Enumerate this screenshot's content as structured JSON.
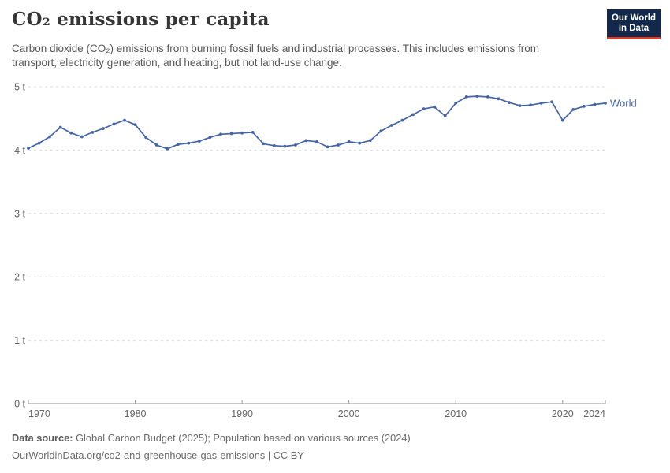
{
  "header": {
    "title": "CO₂ emissions per capita",
    "subtitle_line1": "Carbon dioxide (CO₂) emissions from burning fossil fuels and industrial processes. This includes emissions from",
    "subtitle_line2": "transport, electricity generation, and heating, but not land-use change."
  },
  "logo": {
    "line1": "Our World",
    "line2": "in Data",
    "bg_color": "#12294b",
    "accent_color": "#dc3a2c"
  },
  "chart_data": {
    "type": "line",
    "title": "CO₂ emissions per capita",
    "unit": "tonnes per person",
    "x": [
      1970,
      1971,
      1972,
      1973,
      1974,
      1975,
      1976,
      1977,
      1978,
      1979,
      1980,
      1981,
      1982,
      1983,
      1984,
      1985,
      1986,
      1987,
      1988,
      1989,
      1990,
      1991,
      1992,
      1993,
      1994,
      1995,
      1996,
      1997,
      1998,
      1999,
      2000,
      2001,
      2002,
      2003,
      2004,
      2005,
      2006,
      2007,
      2008,
      2009,
      2010,
      2011,
      2012,
      2013,
      2014,
      2015,
      2016,
      2017,
      2018,
      2019,
      2020,
      2021,
      2022,
      2023,
      2024
    ],
    "series": [
      {
        "name": "World",
        "color": "#4464a8",
        "values": [
          4.03,
          4.11,
          4.21,
          4.36,
          4.27,
          4.21,
          4.28,
          4.34,
          4.41,
          4.47,
          4.4,
          4.2,
          4.08,
          4.02,
          4.09,
          4.11,
          4.14,
          4.2,
          4.25,
          4.26,
          4.27,
          4.28,
          4.1,
          4.07,
          4.06,
          4.08,
          4.15,
          4.13,
          4.05,
          4.08,
          4.13,
          4.11,
          4.15,
          4.3,
          4.39,
          4.47,
          4.56,
          4.65,
          4.68,
          4.54,
          4.74,
          4.84,
          4.85,
          4.84,
          4.81,
          4.75,
          4.7,
          4.71,
          4.74,
          4.76,
          4.47,
          4.64,
          4.69,
          4.72,
          4.74
        ]
      }
    ],
    "ylim": [
      0,
      5
    ],
    "xlim": [
      1970,
      2024
    ],
    "y_ticks": [
      0,
      1,
      2,
      3,
      4,
      5
    ],
    "y_tick_labels": [
      "0 t",
      "1 t",
      "2 t",
      "3 t",
      "4 t",
      "5 t"
    ],
    "x_ticks": [
      1970,
      1980,
      1990,
      2000,
      2010,
      2020,
      2024
    ],
    "grid": "horizontal-dashed",
    "legend": "end-of-line-label",
    "colors": {
      "gridline": "#dcdcdc",
      "axis": "#8f8f8f",
      "tick": "#9a9a9a",
      "tick_label": "#636363"
    }
  },
  "footer": {
    "data_source_label": "Data source:",
    "data_source_text": " Global Carbon Budget (2025); Population based on various sources (2024)",
    "url_line": "OurWorldinData.org/co2-and-greenhouse-gas-emissions | CC BY"
  }
}
